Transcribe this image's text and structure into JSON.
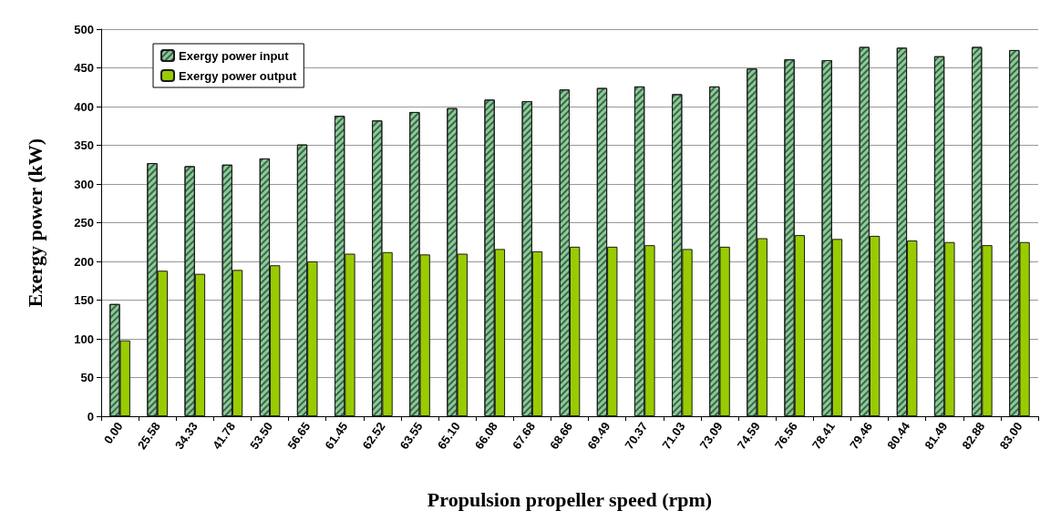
{
  "chart_data": {
    "type": "bar",
    "xlabel": "Propulsion propeller speed (rpm)",
    "ylabel": "Exergy power (kW)",
    "categories": [
      "0.00",
      "25.58",
      "34.33",
      "41.78",
      "53.50",
      "56.65",
      "61.45",
      "62.52",
      "63.55",
      "65.10",
      "66.08",
      "67.68",
      "68.66",
      "69.49",
      "70.37",
      "71.03",
      "73.09",
      "74.59",
      "76.56",
      "78.41",
      "79.46",
      "80.44",
      "81.49",
      "82.88",
      "83.00"
    ],
    "series": [
      {
        "name": "Exergy power input",
        "color": "#8cc99a",
        "values": [
          145,
          327,
          323,
          325,
          333,
          351,
          388,
          382,
          393,
          398,
          409,
          407,
          422,
          424,
          426,
          416,
          426,
          449,
          461,
          460,
          477,
          476,
          465,
          477,
          473
        ]
      },
      {
        "name": "Exergy power output",
        "color": "#99cc00",
        "values": [
          98,
          188,
          184,
          189,
          195,
          200,
          210,
          212,
          209,
          210,
          216,
          213,
          219,
          219,
          221,
          216,
          219,
          230,
          234,
          229,
          233,
          227,
          225,
          221,
          225
        ]
      }
    ],
    "ylim": [
      0,
      500
    ],
    "yticks": [
      0,
      50,
      100,
      150,
      200,
      250,
      300,
      350,
      400,
      450,
      500
    ],
    "grid": "y",
    "legend": "top left"
  }
}
